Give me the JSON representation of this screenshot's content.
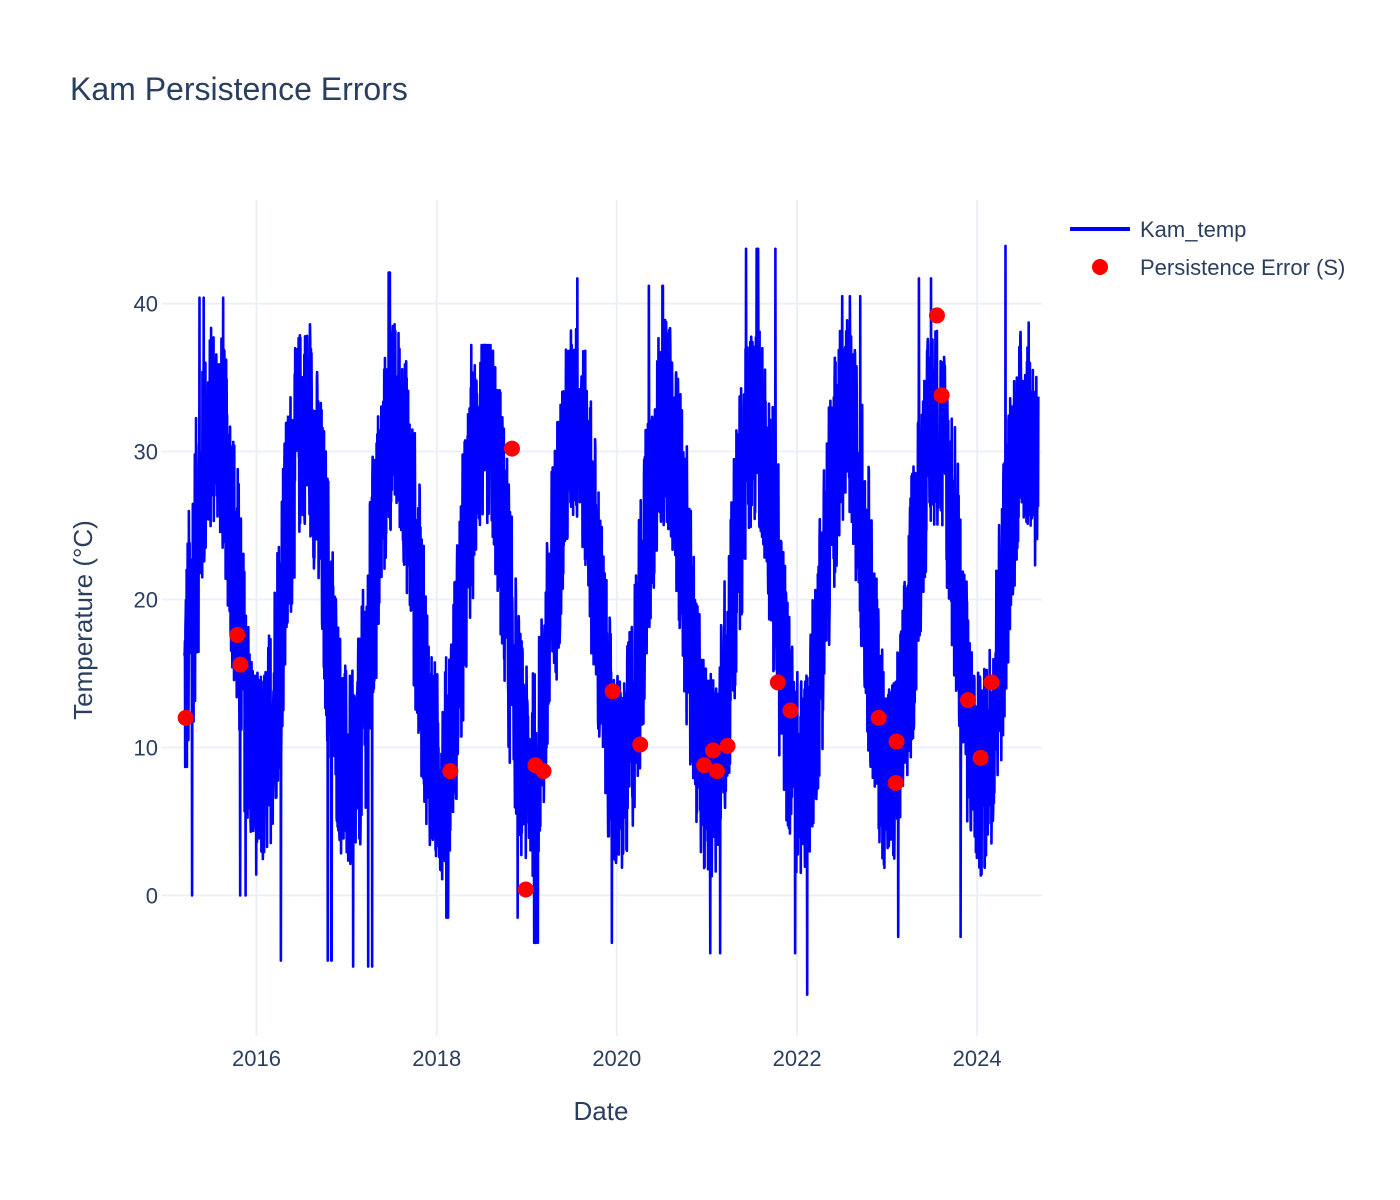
{
  "chart_data": {
    "type": "line",
    "title": "Kam Persistence Errors",
    "xlabel": "Date",
    "ylabel": "Temperature (°C)",
    "xlim": [
      "2014-12-14",
      "2024-09-20"
    ],
    "ylim": [
      -9.5,
      47
    ],
    "x_ticks": [
      {
        "label": "2016",
        "date": "2016-01-01"
      },
      {
        "label": "2018",
        "date": "2018-01-01"
      },
      {
        "label": "2020",
        "date": "2020-01-01"
      },
      {
        "label": "2022",
        "date": "2022-01-01"
      },
      {
        "label": "2024",
        "date": "2024-01-01"
      }
    ],
    "y_ticks": [
      0,
      10,
      20,
      30,
      40
    ],
    "grid": true,
    "legend_position": "top-right",
    "series": [
      {
        "name": "Kam_temp",
        "kind": "line",
        "color": "#0000ff",
        "x_start": "2015-03-15",
        "x_end": "2024-09-05",
        "seasonal_envelope": {
          "summer_peak_day_of_year": 196,
          "yearly": [
            {
              "year": 2015,
              "summer_max": 40.4,
              "winter_min": 0.0
            },
            {
              "year": 2016,
              "summer_max": 38.6,
              "winter_min": -4.4
            },
            {
              "year": 2017,
              "summer_max": 42.1,
              "winter_min": -4.8
            },
            {
              "year": 2018,
              "summer_max": 37.2,
              "winter_min": -1.5
            },
            {
              "year": 2019,
              "summer_max": 41.7,
              "winter_min": -3.2
            },
            {
              "year": 2020,
              "summer_max": 41.2,
              "winter_min": -4.5
            },
            {
              "year": 2021,
              "summer_max": 43.7,
              "winter_min": -3.9
            },
            {
              "year": 2022,
              "summer_max": 40.5,
              "winter_min": -6.7
            },
            {
              "year": 2023,
              "summer_max": 41.7,
              "winter_min": -2.8
            },
            {
              "year": 2024,
              "summer_max": 43.9,
              "winter_min": -3.8
            }
          ]
        }
      },
      {
        "name": "Persistence Error (S)",
        "kind": "markers",
        "color": "#ff0000",
        "points": [
          {
            "date": "2015-03-20",
            "value": 12.0
          },
          {
            "date": "2015-10-15",
            "value": 17.6
          },
          {
            "date": "2015-10-28",
            "value": 15.6
          },
          {
            "date": "2018-02-25",
            "value": 8.4
          },
          {
            "date": "2018-11-02",
            "value": 30.2
          },
          {
            "date": "2018-12-28",
            "value": 0.4
          },
          {
            "date": "2019-02-05",
            "value": 8.8
          },
          {
            "date": "2019-03-10",
            "value": 8.4
          },
          {
            "date": "2019-12-15",
            "value": 13.8
          },
          {
            "date": "2020-04-05",
            "value": 10.2
          },
          {
            "date": "2020-12-20",
            "value": 8.8
          },
          {
            "date": "2021-01-25",
            "value": 9.8
          },
          {
            "date": "2021-02-10",
            "value": 8.4
          },
          {
            "date": "2021-03-25",
            "value": 10.1
          },
          {
            "date": "2021-10-15",
            "value": 14.4
          },
          {
            "date": "2021-12-05",
            "value": 12.5
          },
          {
            "date": "2022-11-28",
            "value": 12.0
          },
          {
            "date": "2023-02-05",
            "value": 7.6
          },
          {
            "date": "2023-02-08",
            "value": 10.4
          },
          {
            "date": "2023-07-22",
            "value": 39.2
          },
          {
            "date": "2023-08-10",
            "value": 33.8
          },
          {
            "date": "2023-11-25",
            "value": 13.2
          },
          {
            "date": "2024-01-15",
            "value": 9.3
          },
          {
            "date": "2024-02-28",
            "value": 14.4
          }
        ]
      }
    ]
  }
}
